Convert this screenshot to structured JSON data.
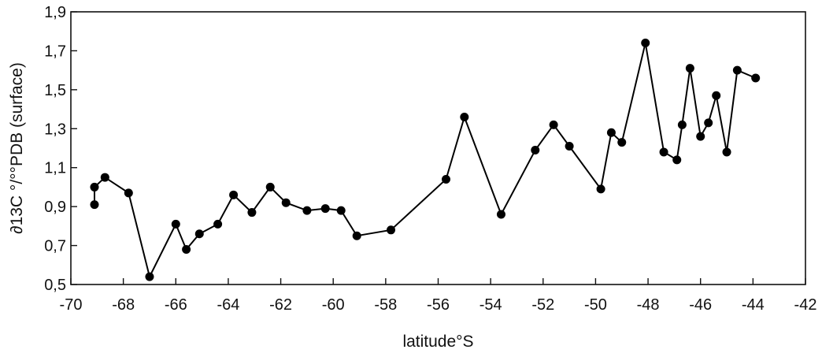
{
  "chart_data": {
    "type": "line",
    "xlabel": "latitude°S",
    "ylabel": "∂13C °/°°PDB  (surface)",
    "xlim": [
      -70,
      -42
    ],
    "ylim": [
      0.5,
      1.9
    ],
    "x_ticks": [
      -70,
      -68,
      -66,
      -64,
      -62,
      -60,
      -58,
      -56,
      -54,
      -52,
      -50,
      -48,
      -46,
      -44,
      -42
    ],
    "x_tick_labels": [
      "-70",
      "-68",
      "-66",
      "-64",
      "-62",
      "-60",
      "-58",
      "-56",
      "-54",
      "-52",
      "-50",
      "-48",
      "-46",
      "-44",
      "-42"
    ],
    "y_ticks": [
      0.5,
      0.7,
      0.9,
      1.1,
      1.3,
      1.5,
      1.7,
      1.9
    ],
    "y_tick_labels": [
      "0,5",
      "0,7",
      "0,9",
      "1,1",
      "1,3",
      "1,5",
      "1,7",
      "1,9"
    ],
    "grid": false,
    "series": [
      {
        "marker": "filled-circle",
        "color": "#000000",
        "x": [
          -69.1,
          -69.1,
          -68.7,
          -67.8,
          -67.0,
          -66.0,
          -65.6,
          -65.1,
          -64.4,
          -63.8,
          -63.1,
          -62.4,
          -61.8,
          -61.0,
          -60.3,
          -59.7,
          -59.1,
          -57.8,
          -55.7,
          -55.0,
          -53.6,
          -52.3,
          -51.6,
          -51.0,
          -49.8,
          -49.4,
          -49.0,
          -48.1,
          -47.4,
          -46.9,
          -46.7,
          -46.4,
          -46.0,
          -45.7,
          -45.4,
          -45.0,
          -44.6,
          -43.9
        ],
        "y": [
          0.91,
          1.0,
          1.05,
          0.97,
          0.54,
          0.81,
          0.68,
          0.76,
          0.81,
          0.96,
          0.87,
          1.0,
          0.92,
          0.88,
          0.89,
          0.88,
          0.75,
          0.78,
          1.04,
          1.36,
          0.86,
          1.19,
          1.32,
          1.21,
          0.99,
          1.28,
          1.23,
          1.74,
          1.18,
          1.14,
          1.32,
          1.61,
          1.26,
          1.33,
          1.47,
          1.18,
          1.6,
          1.56
        ]
      }
    ]
  }
}
